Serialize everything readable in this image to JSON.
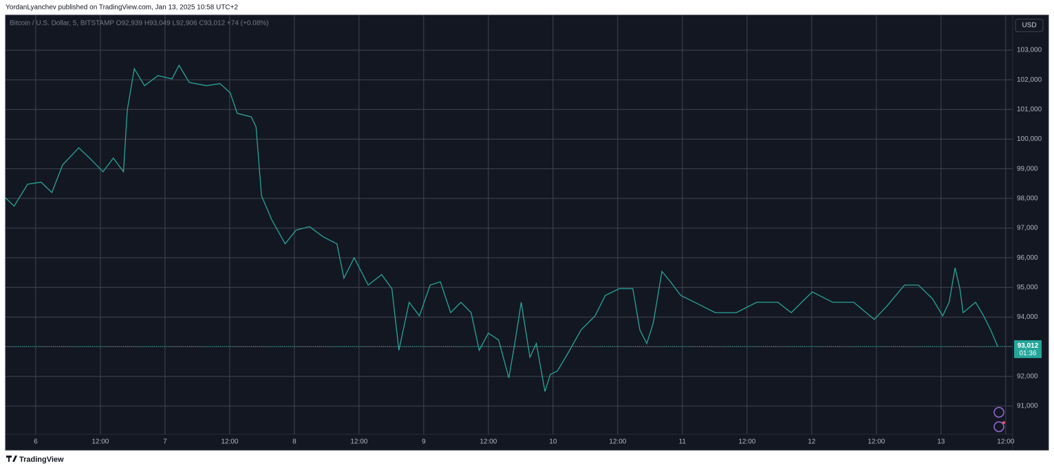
{
  "header": "YordanLyanchev published on TradingView.com, Jan 13, 2025 10:58 UTC+2",
  "footer": "TradingView",
  "chart_data": {
    "type": "line",
    "title": "Bitcoin / U.S. Dollar, 5, BITSTAMP  O92,939  H93,049  L92,906  C93,012  +74 (+0.08%)",
    "currency": "USD",
    "color": "#26a69a",
    "grid": true,
    "x": [
      -5.6,
      -4,
      -1.5,
      1,
      3,
      5,
      8,
      10,
      12.5,
      14.4,
      16.3,
      17,
      18.3,
      20.2,
      22.7,
      25.3,
      26.6,
      28.5,
      31.7,
      34.2,
      36.1,
      37.4,
      40,
      40.9,
      41.9,
      43.8,
      46.3,
      48.3,
      50.8,
      53.4,
      55.9,
      57.2,
      59.1,
      61.7,
      64.2,
      66.1,
      67.4,
      69.3,
      71.2,
      73.2,
      75.1,
      77,
      78.9,
      80.8,
      82.3,
      84,
      85.9,
      87.8,
      88.9,
      90.1,
      91.7,
      92.9,
      94.5,
      95.5,
      96.8,
      98.7,
      101.2,
      103.8,
      105.7,
      108.3,
      110.8,
      112.1,
      113.4,
      114.6,
      116.2,
      117.8,
      119.7,
      122.3,
      126.1,
      130,
      133.8,
      137.7,
      140.2,
      144.1,
      147.9,
      151.8,
      155.6,
      158,
      161.2,
      163.8,
      166.4,
      168.3,
      169.5,
      170.6,
      171.5,
      172.1,
      174.4,
      175.9,
      177.2,
      178.5
    ],
    "values": [
      98020,
      97740,
      98480,
      98550,
      98200,
      99130,
      99710,
      99360,
      98900,
      99360,
      98900,
      100980,
      102370,
      101800,
      102140,
      102030,
      102490,
      101910,
      101800,
      101870,
      101560,
      100870,
      100750,
      100410,
      98090,
      97280,
      96470,
      96930,
      97050,
      96700,
      96470,
      95310,
      96000,
      95080,
      95430,
      94960,
      92880,
      94500,
      94040,
      95080,
      95190,
      94150,
      94500,
      94150,
      92880,
      93460,
      93230,
      91950,
      93110,
      94500,
      92650,
      93110,
      91490,
      92070,
      92180,
      92760,
      93570,
      94040,
      94730,
      94960,
      94960,
      93570,
      93110,
      93800,
      95540,
      95190,
      94730,
      94500,
      94150,
      94150,
      94500,
      94500,
      94150,
      94850,
      94500,
      94500,
      93920,
      94380,
      95080,
      95080,
      94620,
      94040,
      94500,
      95660,
      94960,
      94150,
      94500,
      94040,
      93570,
      93012
    ],
    "last_price": {
      "value": 93012,
      "label": "93,012"
    },
    "countdown": "01:36",
    "xlim": [
      -5.6,
      181.3
    ],
    "xticks": [
      {
        "value": 0,
        "label": "6"
      },
      {
        "value": 12,
        "label": "12:00"
      },
      {
        "value": 24,
        "label": "7"
      },
      {
        "value": 36,
        "label": "12:00"
      },
      {
        "value": 48,
        "label": "8"
      },
      {
        "value": 60,
        "label": "12:00"
      },
      {
        "value": 72,
        "label": "9"
      },
      {
        "value": 84,
        "label": "12:00"
      },
      {
        "value": 96,
        "label": "10"
      },
      {
        "value": 108,
        "label": "12:00"
      },
      {
        "value": 120,
        "label": "11"
      },
      {
        "value": 132,
        "label": "12:00"
      },
      {
        "value": 144,
        "label": "12"
      },
      {
        "value": 156,
        "label": "12:00"
      },
      {
        "value": 168,
        "label": "13"
      },
      {
        "value": 180,
        "label": "12:00"
      }
    ],
    "ylim": [
      90050,
      104180
    ],
    "yticks": [
      {
        "value": 91000,
        "label": "91,000"
      },
      {
        "value": 92000,
        "label": "92,000"
      },
      {
        "value": 93000,
        "label": "93,000"
      },
      {
        "value": 94000,
        "label": "94,000"
      },
      {
        "value": 95000,
        "label": "95,000"
      },
      {
        "value": 96000,
        "label": "96,000"
      },
      {
        "value": 97000,
        "label": "97,000"
      },
      {
        "value": 98000,
        "label": "98,000"
      },
      {
        "value": 99000,
        "label": "99,000"
      },
      {
        "value": 100000,
        "label": "100,000"
      },
      {
        "value": 101000,
        "label": "101,000"
      },
      {
        "value": 102000,
        "label": "102,000"
      },
      {
        "value": 103000,
        "label": "103,000"
      }
    ]
  }
}
